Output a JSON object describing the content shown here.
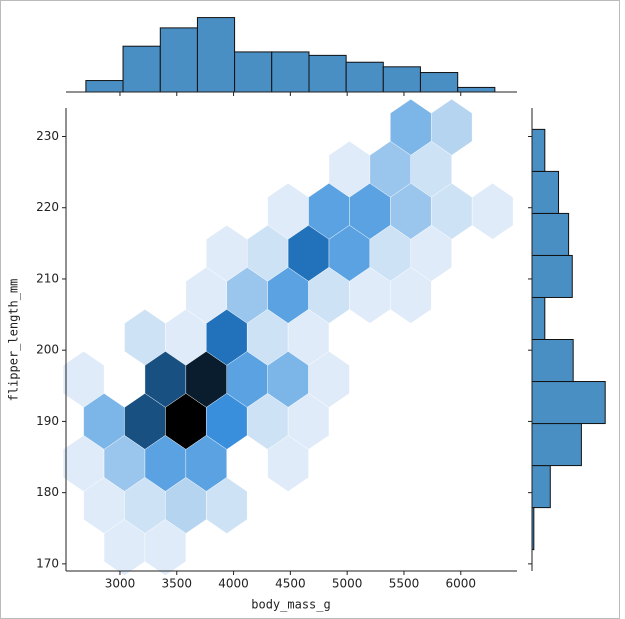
{
  "chart_data": [
    {
      "type": "hexbin",
      "x_label": "body_mass_g",
      "y_label": "flipper_length_mm",
      "xlim": [
        2525,
        6495
      ],
      "ylim": [
        169,
        234
      ],
      "xticks": [
        3000,
        3500,
        4000,
        4500,
        5000,
        5500,
        6000
      ],
      "yticks": [
        170,
        180,
        190,
        200,
        210,
        220,
        230
      ],
      "cmap": [
        "#eef4fb",
        "#d3e5f6",
        "#a9cdee",
        "#74b1e6",
        "#3a8fdc",
        "#2376c2",
        "#1b5b94",
        "#0f3350",
        "#000000"
      ],
      "x": [
        5560,
        5920,
        5020,
        5380,
        5740,
        4480,
        4840,
        5200,
        5560,
        5920,
        6280,
        3940,
        4300,
        4660,
        5020,
        5380,
        5740,
        3760,
        4120,
        4480,
        4840,
        5200,
        5560,
        3220,
        3580,
        3940,
        4300,
        4660,
        2680,
        3400,
        3760,
        4120,
        4480,
        4840,
        2860,
        3220,
        3580,
        3940,
        4300,
        4660,
        2680,
        3040,
        3400,
        3760,
        4480,
        2860,
        3220,
        3580,
        3940,
        3040,
        3400
      ],
      "y": [
        231.3,
        231.3,
        225.4,
        225.4,
        225.4,
        219.5,
        219.5,
        219.5,
        219.5,
        219.5,
        219.5,
        213.6,
        213.6,
        213.6,
        213.6,
        213.6,
        213.6,
        207.7,
        207.7,
        207.7,
        207.7,
        207.7,
        207.7,
        201.8,
        201.8,
        201.8,
        201.8,
        201.8,
        195.9,
        195.9,
        195.9,
        195.9,
        195.9,
        195.9,
        190,
        190,
        190,
        190,
        190,
        190,
        184.1,
        184.1,
        184.1,
        184.1,
        184.1,
        178.2,
        178.2,
        178.2,
        178.2,
        172.3,
        172.3
      ],
      "values": [
        5,
        3,
        1,
        4,
        2,
        1,
        6,
        6,
        4,
        2,
        1,
        1,
        2,
        9,
        6,
        2,
        1,
        1,
        4,
        6,
        2,
        1,
        1,
        2,
        1,
        9,
        2,
        1,
        1,
        11,
        13,
        6,
        5,
        1,
        5,
        11,
        14,
        7,
        2,
        1,
        1,
        4,
        6,
        6,
        1,
        1,
        2,
        3,
        2,
        1,
        1
      ]
    },
    {
      "type": "histogram",
      "orientation": "vertical",
      "color": "#4a8fc4",
      "bins": [
        2700,
        3027,
        3355,
        3682,
        4009,
        4336,
        4664,
        4991,
        5318,
        5645,
        5973,
        6300
      ],
      "values": [
        10,
        40,
        56,
        65,
        35,
        35,
        32,
        26,
        22,
        17,
        4
      ],
      "ylim": [
        0,
        69
      ]
    },
    {
      "type": "histogram",
      "orientation": "horizontal",
      "color": "#4a8fc4",
      "bins": [
        172,
        177.9,
        183.8,
        189.7,
        195.6,
        201.5,
        207.4,
        213.3,
        219.2,
        225.1,
        231
      ],
      "values": [
        2,
        20,
        54,
        80,
        45,
        14,
        44,
        40,
        29,
        14
      ],
      "xlim": [
        0,
        94
      ]
    }
  ]
}
